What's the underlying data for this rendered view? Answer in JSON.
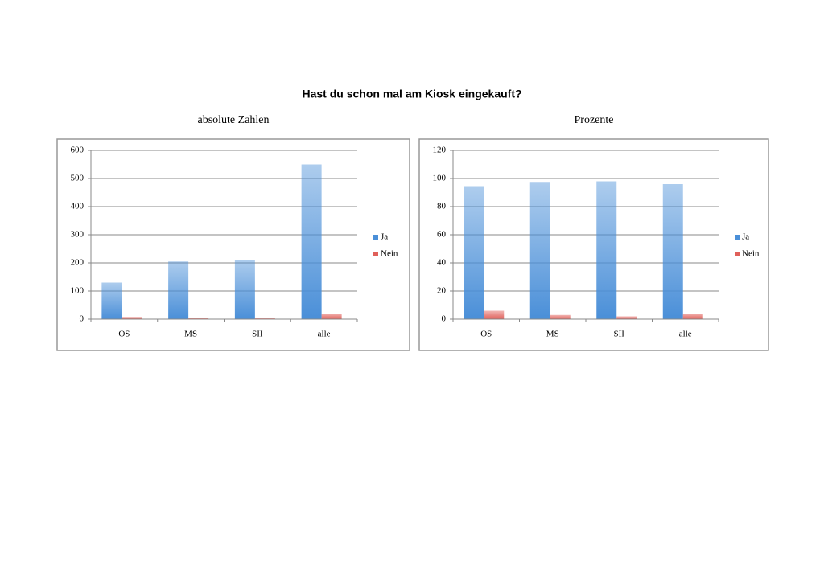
{
  "title": "Hast du schon mal am Kiosk eingekauft?",
  "chart_data": [
    {
      "type": "bar",
      "title": "absolute Zahlen",
      "categories": [
        "OS",
        "MS",
        "SII",
        "alle"
      ],
      "series": [
        {
          "name": "Ja",
          "color": "#4a8fd8",
          "values": [
            130,
            205,
            210,
            550
          ]
        },
        {
          "name": "Nein",
          "color": "#e0605a",
          "values": [
            8,
            5,
            4,
            20
          ]
        }
      ],
      "ylim": [
        0,
        600
      ],
      "yticks": [
        0,
        100,
        200,
        300,
        400,
        500,
        600
      ],
      "grid": true,
      "legend": "right"
    },
    {
      "type": "bar",
      "title": "Prozente",
      "categories": [
        "OS",
        "MS",
        "SII",
        "alle"
      ],
      "series": [
        {
          "name": "Ja",
          "color": "#4a8fd8",
          "values": [
            94,
            97,
            98,
            96
          ]
        },
        {
          "name": "Nein",
          "color": "#e0605a",
          "values": [
            6,
            3,
            2,
            4
          ]
        }
      ],
      "ylim": [
        0,
        120
      ],
      "yticks": [
        0,
        20,
        40,
        60,
        80,
        100,
        120
      ],
      "grid": true,
      "legend": "right"
    }
  ]
}
